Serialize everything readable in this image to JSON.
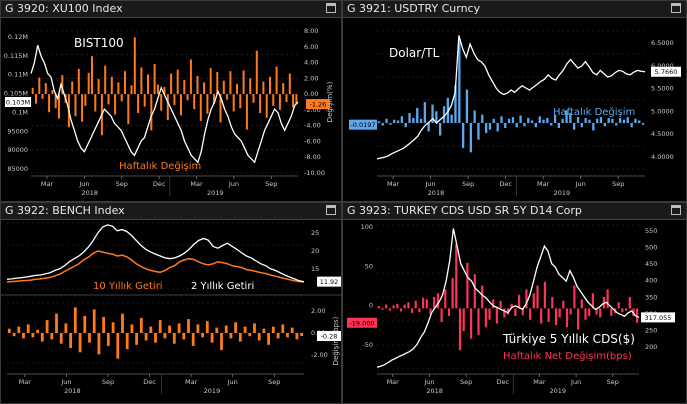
{
  "panels": [
    {
      "id": "p1",
      "title": "G 3920: XU100 Index"
    },
    {
      "id": "p2",
      "title": "G 3921: USDTRY Curncy"
    },
    {
      "id": "p3",
      "title": "G 3922: BENCH Index"
    },
    {
      "id": "p4",
      "title": "G 3923: TURKEY CDS USD SR 5Y D14 Corp"
    }
  ],
  "colors": {
    "line": "#ffffff",
    "bars_orange": "#ff7a1a",
    "bars_blue": "#5aa8f0",
    "bars_red": "#ff3355",
    "yield_orange": "#ff7a1a",
    "grid": "#333333",
    "axis_text": "#c8c8c8"
  },
  "x_axis": {
    "months": [
      "Mar",
      "Jun",
      "Sep",
      "Dec",
      "Mar",
      "Jun",
      "Sep"
    ],
    "years": [
      "2018",
      "2019"
    ]
  },
  "chart_data": [
    {
      "id": "xu100",
      "type": "line+bar",
      "title": "BIST100",
      "annotation": "Haftalık Değişim",
      "left_ticks": [
        "0.12M",
        "0.115M",
        "0.11M",
        "0.105M",
        "0.1M",
        "95000",
        "90000",
        "85000"
      ],
      "right_ticks": [
        "8.00",
        "6.00",
        "4.00",
        "2.00",
        "0.00",
        "-2.00",
        "-4.00",
        "-6.00",
        "-8.00",
        "-10.00"
      ],
      "right_axis_label": "Değişim(%)",
      "line_last": "0.103M",
      "bar_last": "-1.26",
      "line": {
        "name": "BIST100",
        "ylim": [
          83000,
          123000
        ],
        "values": [
          111000,
          114000,
          119000,
          116000,
          114000,
          111000,
          110000,
          106000,
          104000,
          108000,
          105000,
          102000,
          98000,
          95000,
          92000,
          90000,
          89000,
          91000,
          93000,
          95000,
          97000,
          99000,
          101000,
          100000,
          99000,
          97000,
          96000,
          95000,
          93000,
          91000,
          89000,
          88000,
          90000,
          92000,
          93000,
          96000,
          99000,
          101000,
          104000,
          107000,
          105000,
          103000,
          101000,
          99000,
          97000,
          95000,
          92000,
          90000,
          88000,
          87000,
          86000,
          89000,
          94000,
          98000,
          101000,
          103000,
          106000,
          104000,
          101000,
          99000,
          96000,
          94000,
          93000,
          92000,
          90000,
          88000,
          87000,
          86000,
          89000,
          92000,
          95000,
          97000,
          99000,
          101000,
          100000,
          97000,
          95000,
          97000,
          99000,
          102000,
          103000
        ]
      },
      "bars": {
        "name": "Haftalık Değişim",
        "ylim": [
          -10,
          8
        ],
        "values": [
          0.8,
          -1.2,
          2.1,
          -0.6,
          1.4,
          -2.3,
          0.5,
          -1.8,
          -3.1,
          2.4,
          -1.1,
          -4.2,
          1.6,
          -2.8,
          3.2,
          -3.5,
          -1.5,
          2.7,
          4.8,
          -2.2,
          1.9,
          -5.2,
          3.6,
          -1.3,
          2.2,
          -2.6,
          1.5,
          -0.9,
          2.9,
          -3.8,
          1.1,
          7.2,
          -2.4,
          3.4,
          -1.6,
          2.5,
          -4.6,
          3.8,
          1.2,
          -2.1,
          0.9,
          -3.3,
          2.6,
          -1.4,
          3.1,
          -2.7,
          1.8,
          -0.8,
          4.4,
          -1.9,
          2.3,
          -3.4,
          1.5,
          -2.5,
          3.3,
          -1.2,
          2.8,
          -3.6,
          1.7,
          -0.7,
          2.9,
          -2.2,
          1.3,
          -1.8,
          3.0,
          -4.5,
          2.0,
          -1.1,
          5.5,
          -2.4,
          1.6,
          -3.0,
          2.2,
          -1.5,
          3.5,
          -2.0,
          1.4,
          -1.0,
          2.6,
          -1.7,
          -1.26
        ]
      }
    },
    {
      "id": "usdtry",
      "type": "line+bar",
      "title": "Dolar/TL",
      "annotation": "Haftalık Değişim",
      "right_ticks": [
        "6.5000",
        "6.0000",
        "5.5000",
        "5.0000",
        "4.5000",
        "4.0000"
      ],
      "line_last": "5.7660",
      "bar_last": "-0.0197",
      "line": {
        "name": "Dolar/TL",
        "ylim": [
          3.55,
          6.7
        ],
        "values": [
          3.78,
          3.8,
          3.82,
          3.85,
          3.9,
          3.94,
          3.98,
          4.02,
          4.08,
          4.15,
          4.22,
          4.3,
          4.45,
          4.55,
          4.62,
          4.7,
          4.6,
          4.68,
          4.75,
          4.85,
          5.0,
          5.3,
          6.6,
          6.3,
          6.1,
          6.4,
          6.2,
          6.05,
          6.0,
          5.9,
          5.7,
          5.55,
          5.4,
          5.3,
          5.25,
          5.28,
          5.35,
          5.3,
          5.38,
          5.45,
          5.4,
          5.35,
          5.42,
          5.48,
          5.55,
          5.6,
          5.7,
          5.62,
          5.58,
          5.7,
          5.8,
          5.95,
          6.05,
          5.95,
          5.85,
          5.9,
          6.0,
          5.88,
          5.75,
          5.7,
          5.8,
          5.72,
          5.65,
          5.68,
          5.75,
          5.8,
          5.78,
          5.72,
          5.7,
          5.76,
          5.8,
          5.78,
          5.77
        ]
      },
      "bars": {
        "name": "Haftalık Değişim",
        "ylim": [
          -0.55,
          1.1
        ],
        "values": [
          0.02,
          -0.03,
          0.05,
          -0.02,
          0.04,
          0.03,
          0.08,
          -0.05,
          0.12,
          0.06,
          0.18,
          0.05,
          0.25,
          -0.1,
          0.22,
          0.14,
          -0.15,
          0.2,
          0.3,
          0.1,
          0.45,
          1.0,
          -0.3,
          0.4,
          -0.35,
          0.15,
          -0.2,
          0.1,
          -0.12,
          -0.08,
          0.05,
          -0.1,
          0.08,
          -0.06,
          0.05,
          0.07,
          -0.05,
          0.09,
          -0.04,
          0.06,
          0.03,
          -0.05,
          0.08,
          0.04,
          0.06,
          -0.03,
          0.1,
          -0.06,
          0.05,
          0.15,
          0.12,
          -0.08,
          0.07,
          -0.05,
          0.06,
          0.04,
          -0.09,
          0.05,
          0.07,
          -0.04,
          0.06,
          0.05,
          -0.03,
          0.06,
          0.04,
          0.07,
          -0.05,
          0.05,
          0.03,
          -0.02
        ]
      }
    },
    {
      "id": "bench",
      "type": "line+bar",
      "label_orange": "10 Yıllık Getiri",
      "label_white": "2 Yıllık Getiri",
      "right_ticks_top": [
        "25",
        "20",
        "15"
      ],
      "right_ticks_bottom": [
        "2.00",
        "0.00",
        "-2.00"
      ],
      "right_axis_label": "Değişim (bps)",
      "line_last": "11.92",
      "bar_last": "-0.28",
      "yield_2y": {
        "name": "2 Yıllık Getiri",
        "ylim": [
          10,
          27
        ],
        "values": [
          12.5,
          12.6,
          12.8,
          12.9,
          13.1,
          13.3,
          13.5,
          13.6,
          13.9,
          14.2,
          14.8,
          15.2,
          16.0,
          17.0,
          17.8,
          18.5,
          19.5,
          20.8,
          22.5,
          24.5,
          26.0,
          26.5,
          26.2,
          25.0,
          25.3,
          24.8,
          23.8,
          22.5,
          21.2,
          20.2,
          19.5,
          19.0,
          18.5,
          18.0,
          17.8,
          18.0,
          18.5,
          19.2,
          20.2,
          21.5,
          22.5,
          23.0,
          22.6,
          21.0,
          20.5,
          21.2,
          21.8,
          21.0,
          20.2,
          19.3,
          18.5,
          18.0,
          17.2,
          16.5,
          16.0,
          15.2,
          14.8,
          14.2,
          13.6,
          13.1,
          12.6,
          12.1,
          11.9
        ]
      },
      "yield_10y": {
        "name": "10 Yıllık Getiri",
        "ylim": [
          10,
          27
        ],
        "values": [
          11.8,
          11.9,
          12.0,
          12.1,
          12.2,
          12.3,
          12.5,
          12.6,
          12.8,
          13.0,
          13.4,
          13.8,
          14.5,
          15.2,
          15.8,
          16.5,
          17.5,
          18.2,
          19.2,
          19.8,
          19.5,
          19.2,
          19.0,
          18.5,
          18.7,
          18.3,
          17.5,
          16.5,
          15.8,
          15.2,
          14.8,
          14.5,
          14.3,
          14.8,
          15.5,
          16.0,
          17.0,
          17.5,
          17.8,
          17.6,
          17.0,
          16.5,
          16.2,
          16.5,
          17.0,
          16.8,
          16.5,
          16.0,
          15.8,
          15.5,
          15.0,
          14.8,
          14.5,
          14.2,
          14.0,
          13.6,
          13.3,
          13.0,
          12.7,
          12.4,
          12.1,
          11.9,
          11.8
        ]
      },
      "bars": {
        "name": "Değişim (bps)",
        "ylim": [
          -2.8,
          2.8
        ],
        "values": [
          0.4,
          -0.3,
          0.6,
          -0.5,
          0.8,
          -0.4,
          0.3,
          -0.8,
          1.2,
          -0.6,
          1.8,
          -1.0,
          0.9,
          -1.4,
          2.4,
          -1.8,
          1.6,
          -0.9,
          2.2,
          -2.0,
          1.5,
          -1.2,
          1.0,
          -2.4,
          1.8,
          -1.5,
          0.8,
          -1.1,
          1.4,
          -0.7,
          0.6,
          -0.9,
          1.2,
          -0.5,
          0.7,
          -1.0,
          0.9,
          -0.6,
          1.3,
          -1.2,
          0.8,
          -0.4,
          1.1,
          -0.9,
          0.5,
          -1.6,
          0.7,
          -0.5,
          1.0,
          -0.8,
          0.6,
          -0.3,
          0.9,
          -0.7,
          0.4,
          -1.1,
          0.6,
          -0.5,
          0.8,
          -0.4,
          0.5,
          -0.6,
          -0.28
        ]
      }
    },
    {
      "id": "cds",
      "type": "line+bar",
      "title": "Türkiye 5 Yıllık CDS($)",
      "annotation": "Haftalık Net Değişim(bps)",
      "left_ticks": [
        "100",
        "50",
        "0",
        "-50"
      ],
      "right_ticks": [
        "550",
        "500",
        "450",
        "400",
        "350",
        "300",
        "250",
        "200"
      ],
      "line_last": "317.055",
      "bar_last": "-19.000",
      "line": {
        "name": "Türkiye 5 Yıllık CDS($)",
        "ylim": [
          170,
          580
        ],
        "values": [
          175,
          178,
          182,
          188,
          195,
          200,
          205,
          210,
          215,
          220,
          228,
          240,
          260,
          275,
          300,
          330,
          345,
          360,
          380,
          420,
          480,
          570,
          520,
          470,
          450,
          430,
          420,
          400,
          390,
          380,
          372,
          360,
          350,
          345,
          340,
          335,
          330,
          345,
          350,
          345,
          340,
          355,
          380,
          420,
          460,
          490,
          520,
          505,
          470,
          460,
          440,
          430,
          420,
          450,
          430,
          405,
          390,
          375,
          360,
          350,
          340,
          345,
          355,
          360,
          350,
          340,
          330,
          325,
          320,
          330,
          335,
          322,
          317
        ]
      },
      "bars": {
        "name": "Haftalık Net Değişim(bps)",
        "ylim": [
          -80,
          110
        ],
        "values": [
          3,
          -2,
          5,
          -3,
          4,
          6,
          -4,
          5,
          8,
          -6,
          10,
          -5,
          14,
          12,
          -8,
          15,
          20,
          -18,
          25,
          -10,
          40,
          85,
          -55,
          -30,
          60,
          -40,
          45,
          -35,
          30,
          -25,
          -15,
          12,
          -20,
          10,
          -12,
          -8,
          6,
          -10,
          18,
          -9,
          25,
          -15,
          20,
          30,
          -20,
          35,
          -18,
          15,
          -22,
          -12,
          10,
          -25,
          -8,
          30,
          -28,
          12,
          -15,
          -10,
          20,
          -8,
          -12,
          15,
          25,
          -10,
          -6,
          8,
          -5,
          -3,
          15,
          -10,
          -19
        ]
      }
    }
  ]
}
